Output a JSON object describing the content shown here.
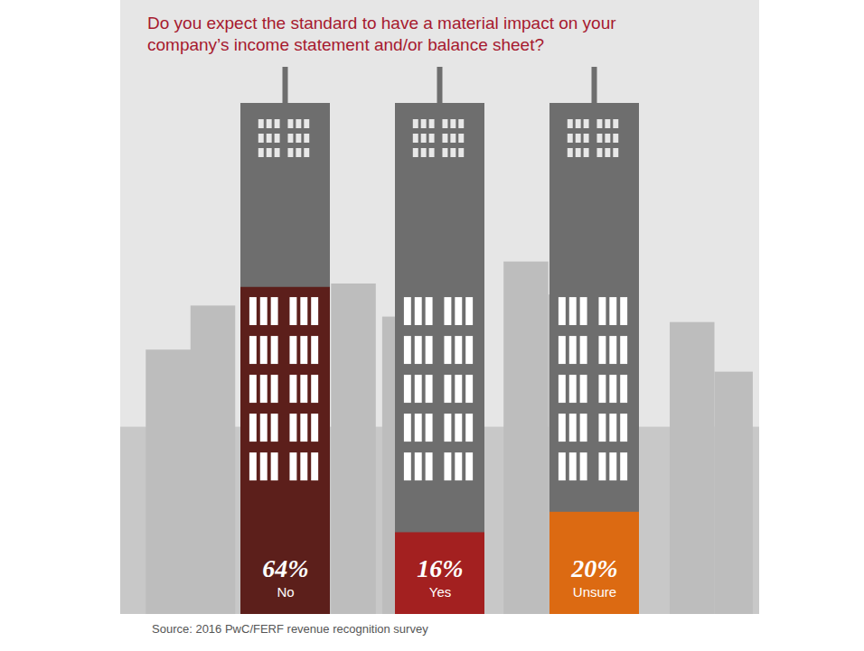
{
  "chart_data": {
    "type": "bar",
    "title": "Do you expect the standard to have a material impact on your company’s income statement and/or balance sheet?",
    "caption": "Source: 2016 PwC/FERF revenue recognition survey",
    "categories": [
      "No",
      "Yes",
      "Unsure"
    ],
    "values": [
      64,
      16,
      20
    ],
    "value_labels": [
      "64%",
      "16%",
      "20%"
    ],
    "colors": [
      "#5c1f1b",
      "#a32020",
      "#dc6a12"
    ],
    "ylim": [
      0,
      100
    ],
    "data_labels": true,
    "tick_labels": false,
    "grid": false
  }
}
